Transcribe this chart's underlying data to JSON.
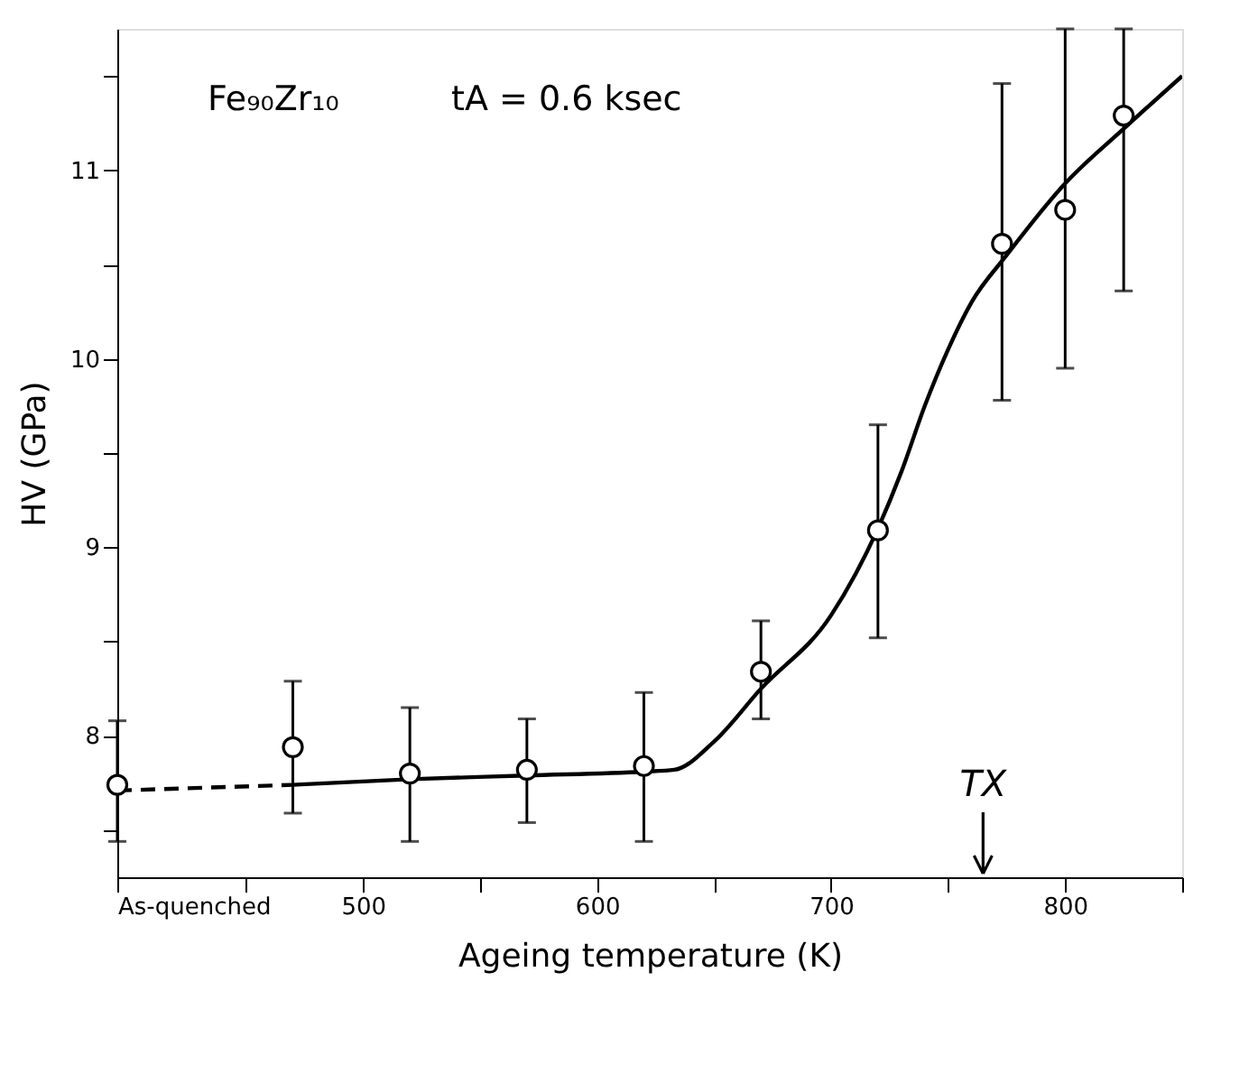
{
  "chart_data": {
    "type": "scatter",
    "xlabel": "Ageing  temperature      (K)",
    "ylabel": "HV  (GPa)",
    "xlim": [
      395,
      850
    ],
    "ylim": [
      7.25,
      11.75
    ],
    "xticks": [
      {
        "value": 395,
        "label": "As-quenched"
      },
      {
        "value": 450,
        "label": null
      },
      500,
      {
        "value": 550,
        "label": null
      },
      600,
      {
        "value": 650,
        "label": null
      },
      700,
      {
        "value": 750,
        "label": null
      },
      800,
      {
        "value": 850,
        "label": null
      }
    ],
    "yticks": [
      {
        "value": 7.5,
        "label": null
      },
      8,
      {
        "value": 8.5,
        "label": null
      },
      9,
      {
        "value": 9.5,
        "label": null
      },
      10,
      {
        "value": 10.5,
        "label": null
      },
      11,
      {
        "value": 11.5,
        "label": null
      }
    ],
    "grid": false,
    "annotations": [
      "Fe₉₀Zr₁₀",
      "tA = 0.6  ksec",
      "TX"
    ],
    "series": [
      {
        "type": "line",
        "line_style": "dashed",
        "color": "#000000",
        "x": [
          395,
          470
        ],
        "values": [
          7.71,
          7.74
        ]
      },
      {
        "type": "line",
        "line_style": "solid",
        "color": "#000000",
        "x": [
          470,
          520,
          570,
          620,
          633,
          650,
          670,
          700,
          720,
          730,
          740,
          750,
          760,
          775,
          800,
          825,
          850
        ],
        "values": [
          7.74,
          7.77,
          7.79,
          7.81,
          7.82,
          7.97,
          8.25,
          8.64,
          9.1,
          9.4,
          9.75,
          10.05,
          10.3,
          10.55,
          10.93,
          11.22,
          11.5
        ]
      },
      {
        "type": "scatter",
        "marker": "circle",
        "color": "#000000",
        "x": [
          395,
          470,
          520,
          570,
          620,
          670,
          720,
          773,
          800,
          825
        ],
        "values": [
          7.74,
          7.94,
          7.8,
          7.82,
          7.84,
          8.34,
          9.09,
          10.61,
          10.79,
          11.29
        ],
        "errors": [
          [
            7.44,
            8.08
          ],
          [
            7.59,
            8.29
          ],
          [
            7.44,
            8.15
          ],
          [
            7.54,
            8.09
          ],
          [
            7.44,
            8.23
          ],
          [
            8.09,
            8.61
          ],
          [
            8.52,
            9.65
          ],
          [
            9.78,
            11.46
          ],
          [
            9.95,
            11.75
          ],
          [
            10.36,
            11.75
          ]
        ]
      }
    ]
  }
}
